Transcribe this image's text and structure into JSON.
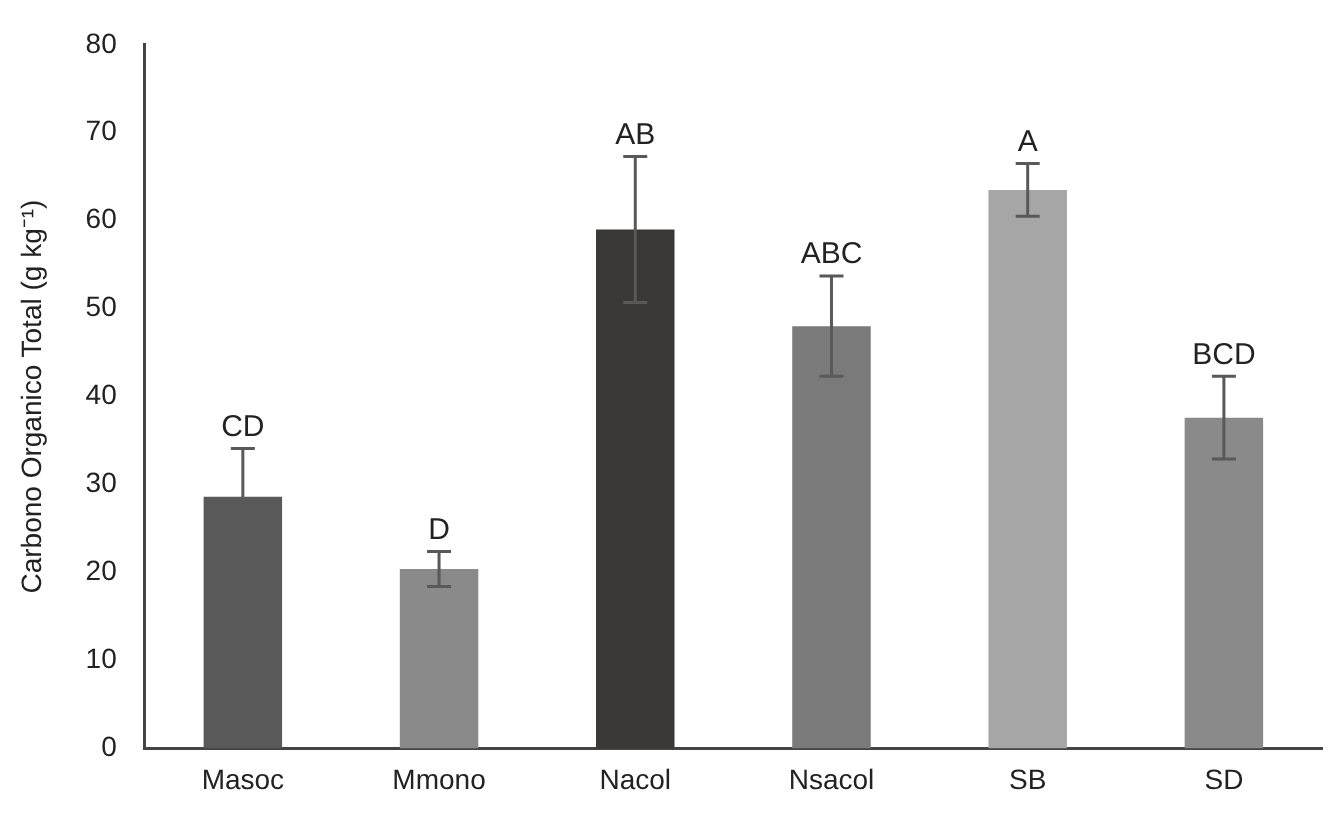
{
  "chart_data": {
    "type": "bar",
    "ylabel": "Carbono Organico Total (g kg⁻¹)",
    "categories": [
      "Masoc",
      "Mmono",
      "Nacol",
      "Nsacol",
      "SB",
      "SD"
    ],
    "values": [
      28.6,
      20.4,
      59.0,
      48.0,
      63.5,
      37.6
    ],
    "colors": [
      "#595959",
      "#8a8a8a",
      "#3a3836",
      "#7a7a7a",
      "#a6a6a6",
      "#8a8a8a"
    ],
    "errors": [
      5.5,
      2,
      8.3,
      5.7,
      3,
      4.7
    ],
    "ylim": [
      0,
      80
    ],
    "yticks": [
      0,
      10,
      20,
      30,
      40,
      50,
      60,
      70,
      80
    ],
    "grid": false,
    "legend": false,
    "annotations": [
      {
        "text": "CD",
        "x": "Masoc",
        "y": 34.1
      },
      {
        "text": "D",
        "x": "Mmono",
        "y": 22.4
      },
      {
        "text": "AB",
        "x": "Nacol",
        "y": 67.3
      },
      {
        "text": "ABC",
        "x": "Nsacol",
        "y": 53.7
      },
      {
        "text": "A",
        "x": "SB",
        "y": 66.5
      },
      {
        "text": "BCD",
        "x": "SD",
        "y": 42.3
      }
    ]
  }
}
